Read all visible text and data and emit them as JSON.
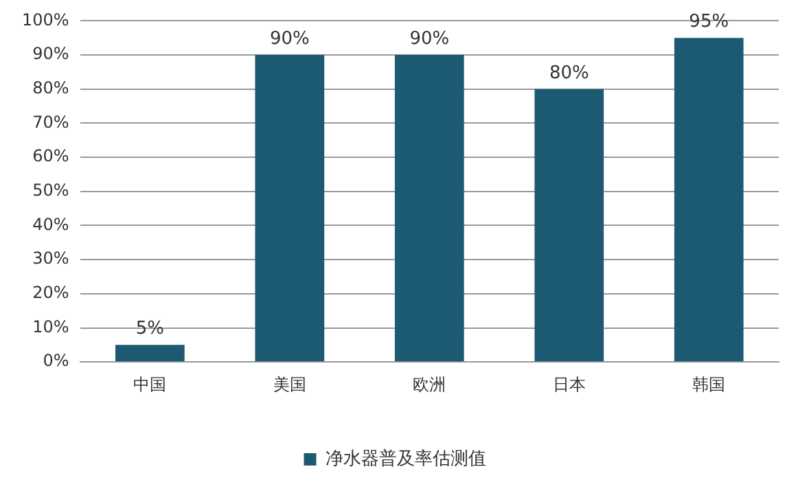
{
  "chart_data": {
    "type": "bar",
    "categories": [
      "中国",
      "美国",
      "欧洲",
      "日本",
      "韩国"
    ],
    "series": [
      {
        "name": "净水器普及率估测值",
        "color": "#1b5a72",
        "values": [
          5,
          90,
          90,
          80,
          95
        ],
        "value_labels": [
          "5%",
          "90%",
          "90%",
          "80%",
          "95%"
        ]
      }
    ],
    "ylim": [
      0,
      100
    ],
    "yticks": [
      {
        "value": 0,
        "label": "0%"
      },
      {
        "value": 10,
        "label": "10%"
      },
      {
        "value": 20,
        "label": "20%"
      },
      {
        "value": 30,
        "label": "30%"
      },
      {
        "value": 40,
        "label": "40%"
      },
      {
        "value": 50,
        "label": "50%"
      },
      {
        "value": 60,
        "label": "60%"
      },
      {
        "value": 70,
        "label": "70%"
      },
      {
        "value": 80,
        "label": "80%"
      },
      {
        "value": 90,
        "label": "90%"
      },
      {
        "value": 100,
        "label": "100%"
      }
    ],
    "grid": "y",
    "legend": "bottom"
  }
}
